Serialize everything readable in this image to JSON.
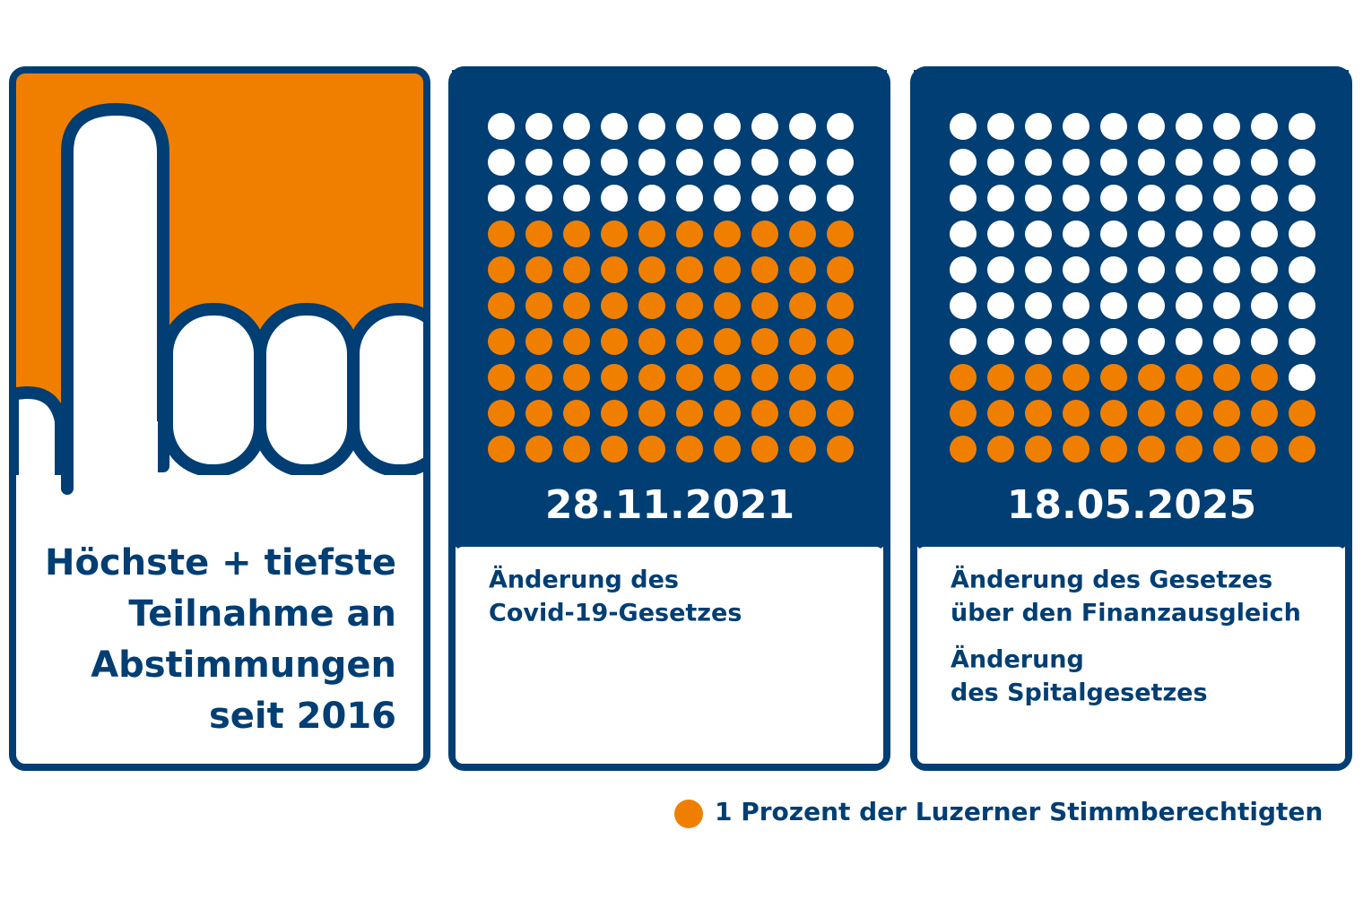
{
  "title": [
    "Höchste + tiefste",
    "Teilnahme an",
    "Abstimmungen",
    "seit 2016"
  ],
  "chart_data": [
    {
      "type": "waffle",
      "title": "28.11.2021",
      "notes": [
        [
          "Änderung des",
          "Covid-19-Gesetzes"
        ]
      ],
      "value": 70,
      "color": "#f07f00"
    },
    {
      "type": "waffle",
      "title": "18.05.2025",
      "notes": [
        [
          "Änderung des Gesetzes",
          "über den Finanzausgleich"
        ],
        [
          "Änderung",
          "des Spitalgesetzes"
        ]
      ],
      "value": 29,
      "color": "#f07f00"
    }
  ],
  "legend": {
    "label": "1 Prozent der Luzerner Stimmberechtigten",
    "color": "#f07f00"
  }
}
